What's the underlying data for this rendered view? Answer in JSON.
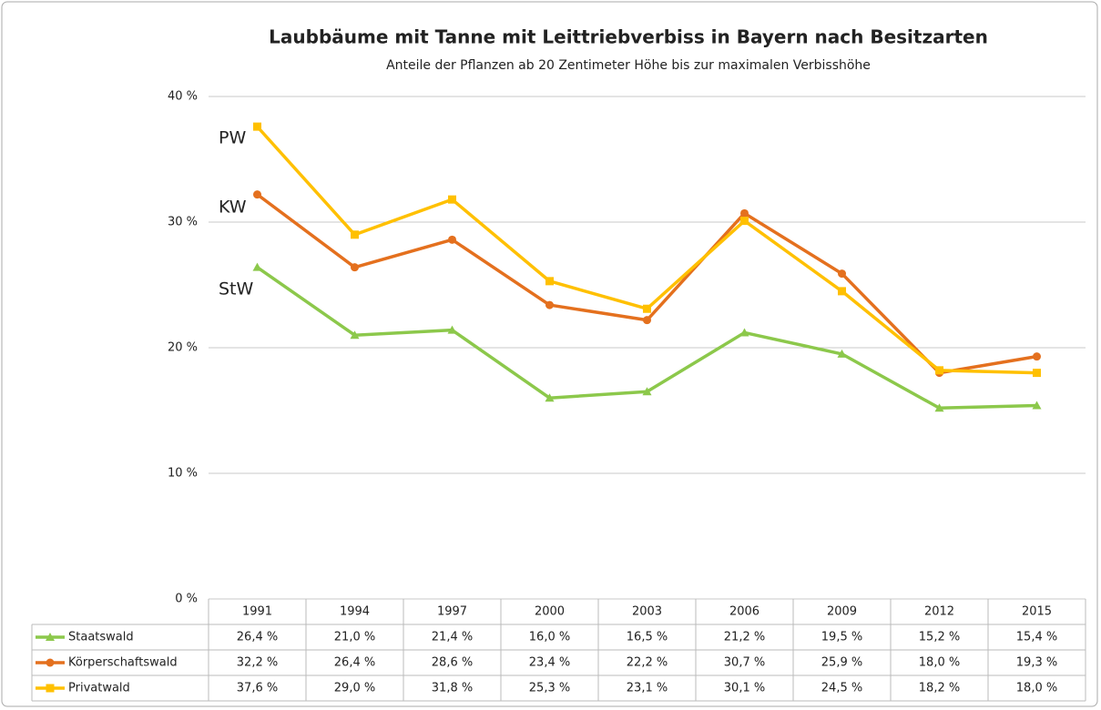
{
  "chart_data": {
    "type": "line",
    "title": "Laubbäume mit Tanne mit Leittriebverbiss in Bayern nach Besitzarten",
    "subtitle": "Anteile der Pflanzen ab 20 Zentimeter Höhe bis zur maximalen Verbisshöhe",
    "categories": [
      "1991",
      "1994",
      "1997",
      "2000",
      "2003",
      "2006",
      "2009",
      "2012",
      "2015"
    ],
    "series": [
      {
        "name": "Staatswald",
        "color": "#8cc84b",
        "marker": "triangle",
        "values": [
          26.4,
          21.0,
          21.4,
          16.0,
          16.5,
          21.2,
          19.5,
          15.2,
          15.4
        ],
        "value_labels": [
          "26,4 %",
          "21,0 %",
          "21,4 %",
          "16,0 %",
          "16,5 %",
          "21,2 %",
          "19,5 %",
          "15,2 %",
          "15,4 %"
        ]
      },
      {
        "name": "Körperschaftswald",
        "color": "#e4701e",
        "marker": "circle",
        "values": [
          32.2,
          26.4,
          28.6,
          23.4,
          22.2,
          30.7,
          25.9,
          18.0,
          19.3
        ],
        "value_labels": [
          "32,2 %",
          "26,4 %",
          "28,6 %",
          "23,4 %",
          "22,2 %",
          "30,7 %",
          "25,9 %",
          "18,0 %",
          "19,3 %"
        ]
      },
      {
        "name": "Privatwald",
        "color": "#ffc000",
        "marker": "square",
        "values": [
          37.6,
          29.0,
          31.8,
          25.3,
          23.1,
          30.1,
          24.5,
          18.2,
          18.0
        ],
        "value_labels": [
          "37,6 %",
          "29,0 %",
          "31,8 %",
          "25,3 %",
          "23,1 %",
          "30,1 %",
          "24,5 %",
          "18,2 %",
          "18,0 %"
        ]
      }
    ],
    "annotations": [
      "PW",
      "KW",
      "StW"
    ],
    "ylim": [
      0,
      40
    ],
    "yticks": [
      {
        "value": 0,
        "label": "0 %"
      },
      {
        "value": 10,
        "label": "10 %"
      },
      {
        "value": 20,
        "label": "20 %"
      },
      {
        "value": 30,
        "label": "30 %"
      },
      {
        "value": 40,
        "label": "40 %"
      }
    ],
    "grid": true
  }
}
